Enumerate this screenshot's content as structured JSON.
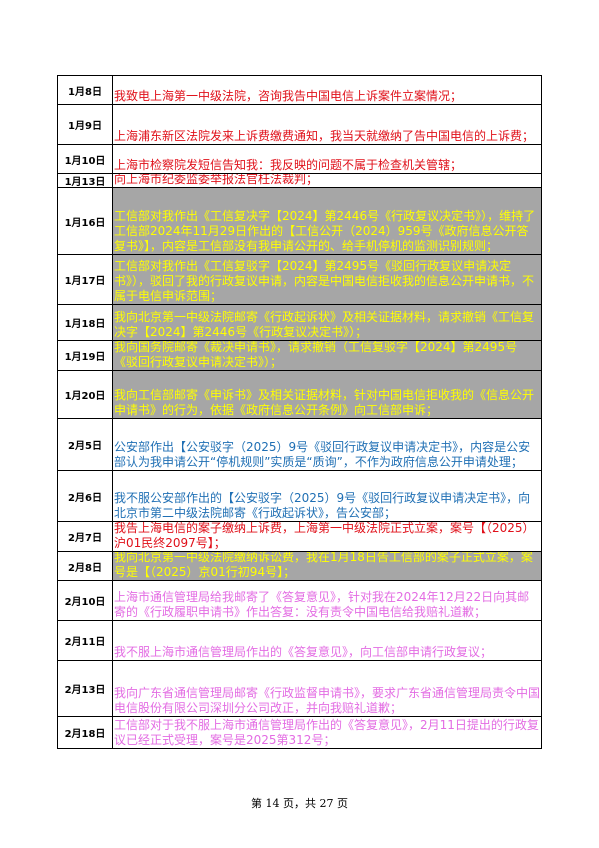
{
  "table": {
    "rows": [
      {
        "date": "1月8日",
        "text": "我致电上海第一中级法院，咨询我告中国电信上诉案件立案情况；",
        "color": "#e0101a",
        "bg": "#ffffff",
        "h": 29
      },
      {
        "date": "1月9日",
        "text": "上海浦东新区法院发来上诉费缴费通知，我当天就缴纳了告中国电信的上诉费；",
        "color": "#e0101a",
        "bg": "#ffffff",
        "h": 40
      },
      {
        "date": "1月10日",
        "text": "上海市检察院发短信告知我：我反映的问题不属于检查机关管辖；",
        "color": "#e0101a",
        "bg": "#ffffff",
        "h": 29
      },
      {
        "date": "1月13日",
        "text": "向上海市纪委监委举报法官枉法裁判；",
        "color": "#e0101a",
        "bg": "#ffffff",
        "h": 14
      },
      {
        "date": "1月16日",
        "text": "工信部对我作出《工信复决字【2024】第2446号《行政复议决定书》），维持了工信部2024年11月29日作出的【工信公开（2024）959号《政府信息公开答复书》】，内容是工信部没有我申请公开的、给手机停机的监测识别规则；",
        "color": "#ffff00",
        "bg": "#a6a6a6",
        "h": 67
      },
      {
        "date": "1月17日",
        "text": "工信部对我作出《工信复驳字【2024】第2495号《驳回行政复议申请决定书》），驳回了我的行政复议申请，内容是中国电信拒收我的信息公开申请书，不属于电信申诉范围；",
        "color": "#ffff00",
        "bg": "#a6a6a6",
        "h": 50
      },
      {
        "date": "1月18日",
        "text": "我向北京第一中级法院邮寄《行政起诉状》及相关证据材料，请求撤销《工信复决字【2024】第2446号《行政复议决定书》）；",
        "color": "#ffff00",
        "bg": "#a6a6a6",
        "h": 36
      },
      {
        "date": "1月19日",
        "text": "我向国务院邮寄《裁决申请书》，请求撤销（工信复驳字【2024】第2495号《驳回行政复议申请决定书》）；",
        "color": "#ffff00",
        "bg": "#a6a6a6",
        "h": 30
      },
      {
        "date": "1月20日",
        "text": "我向工信部邮寄《申诉书》及相关证据材料，针对中国电信拒收我的《信息公开申请书》的行为，依据《政府信息公开条例》向工信部申诉；",
        "color": "#ffff00",
        "bg": "#a6a6a6",
        "h": 48
      },
      {
        "date": "2月5日",
        "text": "公安部作出【公安驳字（2025）9号《驳回行政复议申请决定书》，内容是公安部认为我申请公开“停机规则”实质是“质询”，不作为政府信息公开申请处理；",
        "color": "#1f6fb4",
        "bg": "#ffffff",
        "h": 52
      },
      {
        "date": "2月6日",
        "text": "我不服公安部作出的【公安驳字（2025）9号《驳回行政复议申请决定书》，向北京市第二中级法院邮寄《行政起诉状》，告公安部；",
        "color": "#1f6fb4",
        "bg": "#ffffff",
        "h": 51
      },
      {
        "date": "2月7日",
        "text": "我告上海电信的案子缴纳上诉费，上海第一中级法院正式立案，案号【（2025）沪01民终2097号】；",
        "color": "#e0101a",
        "bg": "#ffffff",
        "h": 30
      },
      {
        "date": "2月8日",
        "text": "我向北京第一中级法院缴纳诉讼费，我在1月18日告工信部的案子正式立案，案号是【（2025）京01行初94号】；",
        "color": "#ffff00",
        "bg": "#a6a6a6",
        "h": 29
      },
      {
        "date": "2月10日",
        "text": "上海市通信管理局给我邮寄了《答复意见》，针对我在2024年12月22日向其邮寄的《行政履职申请书》作出答复：没有责令中国电信给我赔礼道歉；",
        "color": "#e36ce3",
        "bg": "#ffffff",
        "h": 40
      },
      {
        "date": "2月11日",
        "text": "我不服上海市通信管理局作出的《答复意见》，向工信部申请行政复议；",
        "color": "#e36ce3",
        "bg": "#ffffff",
        "h": 40
      },
      {
        "date": "2月13日",
        "text": "我向广东省通信管理局邮寄《行政监督申请书》，要求广东省通信管理局责令中国电信股份有限公司深圳分公司改正，并向我赔礼道歉；",
        "color": "#e36ce3",
        "bg": "#ffffff",
        "h": 56
      },
      {
        "date": "2月18日",
        "text": "工信部对于我不服上海市通信管理局作出的《答复意见》，2月11日提出的行政复议已经正式受理，案号是2025第312号；",
        "color": "#e36ce3",
        "bg": "#ffffff",
        "h": 32
      }
    ]
  },
  "footer": "第 14 页，共 27 页"
}
